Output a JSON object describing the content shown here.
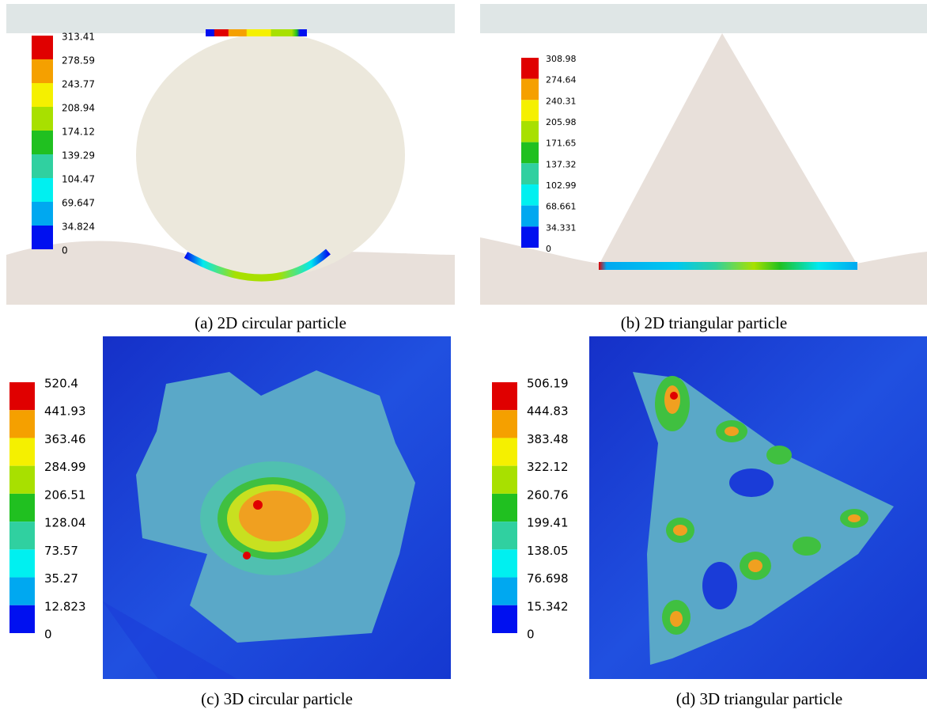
{
  "panels": [
    {
      "caption": "(a) 2D circular particle",
      "legend": [
        "313.41",
        "278.59",
        "243.77",
        "208.94",
        "174.12",
        "139.29",
        "104.47",
        "69.647",
        "34.824",
        "0"
      ]
    },
    {
      "caption": "(b) 2D triangular particle",
      "legend": [
        "308.98",
        "274.64",
        "240.31",
        "205.98",
        "171.65",
        "137.32",
        "102.99",
        "68.661",
        "34.331",
        "0"
      ]
    },
    {
      "caption": "(c) 3D circular particle",
      "legend": [
        "520.4",
        "441.93",
        "363.46",
        "284.99",
        "206.51",
        "128.04",
        "73.57",
        "35.27",
        "12.823",
        "0"
      ]
    },
    {
      "caption": "(d) 3D triangular particle",
      "legend": [
        "506.19",
        "444.83",
        "383.48",
        "322.12",
        "260.76",
        "199.41",
        "138.05",
        "76.698",
        "15.342",
        "0"
      ]
    }
  ]
}
